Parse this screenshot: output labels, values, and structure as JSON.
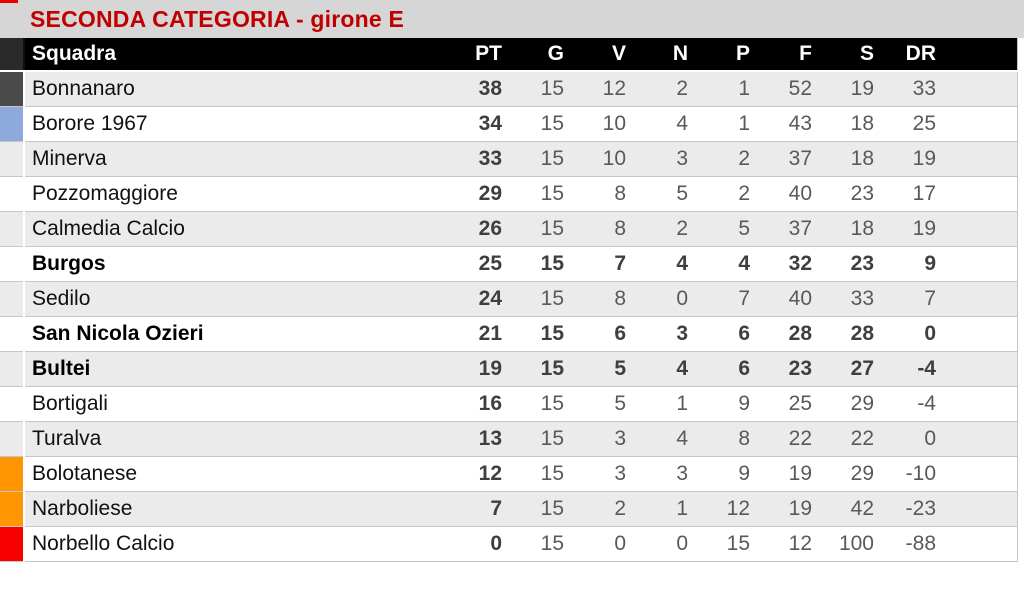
{
  "title": "SECONDA CATEGORIA - girone E",
  "colors": {
    "title_text": "#c00000",
    "title_bg": "#d6d6d6",
    "header_bg": "#000000",
    "header_text": "#ffffff",
    "row_stripe": "#ebebeb",
    "marker_leader_dark_gray": "#4a4a4a",
    "marker_playoff_blue": "#8ea9db",
    "marker_playout_orange": "#ff9500",
    "marker_relegation_red": "#f90000"
  },
  "columns": {
    "squadra": "Squadra",
    "pt": "PT",
    "g": "G",
    "v": "V",
    "n": "N",
    "p": "P",
    "f": "F",
    "s": "S",
    "dr": "DR"
  },
  "rows": [
    {
      "name": "Bonnanaro",
      "pt": "38",
      "g": "15",
      "v": "12",
      "n": "2",
      "p": "1",
      "f": "52",
      "s": "19",
      "dr": "33",
      "bold": false,
      "marker": "#4a4a4a"
    },
    {
      "name": "Borore 1967",
      "pt": "34",
      "g": "15",
      "v": "10",
      "n": "4",
      "p": "1",
      "f": "43",
      "s": "18",
      "dr": "25",
      "bold": false,
      "marker": "#8ea9db"
    },
    {
      "name": "Minerva",
      "pt": "33",
      "g": "15",
      "v": "10",
      "n": "3",
      "p": "2",
      "f": "37",
      "s": "18",
      "dr": "19",
      "bold": false,
      "marker": null
    },
    {
      "name": "Pozzomaggiore",
      "pt": "29",
      "g": "15",
      "v": "8",
      "n": "5",
      "p": "2",
      "f": "40",
      "s": "23",
      "dr": "17",
      "bold": false,
      "marker": null
    },
    {
      "name": "Calmedia Calcio",
      "pt": "26",
      "g": "15",
      "v": "8",
      "n": "2",
      "p": "5",
      "f": "37",
      "s": "18",
      "dr": "19",
      "bold": false,
      "marker": null
    },
    {
      "name": "Burgos",
      "pt": "25",
      "g": "15",
      "v": "7",
      "n": "4",
      "p": "4",
      "f": "32",
      "s": "23",
      "dr": "9",
      "bold": true,
      "marker": null
    },
    {
      "name": "Sedilo",
      "pt": "24",
      "g": "15",
      "v": "8",
      "n": "0",
      "p": "7",
      "f": "40",
      "s": "33",
      "dr": "7",
      "bold": false,
      "marker": null
    },
    {
      "name": "San Nicola Ozieri",
      "pt": "21",
      "g": "15",
      "v": "6",
      "n": "3",
      "p": "6",
      "f": "28",
      "s": "28",
      "dr": "0",
      "bold": true,
      "marker": null
    },
    {
      "name": "Bultei",
      "pt": "19",
      "g": "15",
      "v": "5",
      "n": "4",
      "p": "6",
      "f": "23",
      "s": "27",
      "dr": "-4",
      "bold": true,
      "marker": null
    },
    {
      "name": "Bortigali",
      "pt": "16",
      "g": "15",
      "v": "5",
      "n": "1",
      "p": "9",
      "f": "25",
      "s": "29",
      "dr": "-4",
      "bold": false,
      "marker": null
    },
    {
      "name": "Turalva",
      "pt": "13",
      "g": "15",
      "v": "3",
      "n": "4",
      "p": "8",
      "f": "22",
      "s": "22",
      "dr": "0",
      "bold": false,
      "marker": null
    },
    {
      "name": "Bolotanese",
      "pt": "12",
      "g": "15",
      "v": "3",
      "n": "3",
      "p": "9",
      "f": "19",
      "s": "29",
      "dr": "-10",
      "bold": false,
      "marker": "#ff9500"
    },
    {
      "name": "Narboliese",
      "pt": "7",
      "g": "15",
      "v": "2",
      "n": "1",
      "p": "12",
      "f": "19",
      "s": "42",
      "dr": "-23",
      "bold": false,
      "marker": "#ff9500"
    },
    {
      "name": "Norbello Calcio",
      "pt": "0",
      "g": "15",
      "v": "0",
      "n": "0",
      "p": "15",
      "f": "12",
      "s": "100",
      "dr": "-88",
      "bold": false,
      "marker": "#f90000"
    }
  ]
}
